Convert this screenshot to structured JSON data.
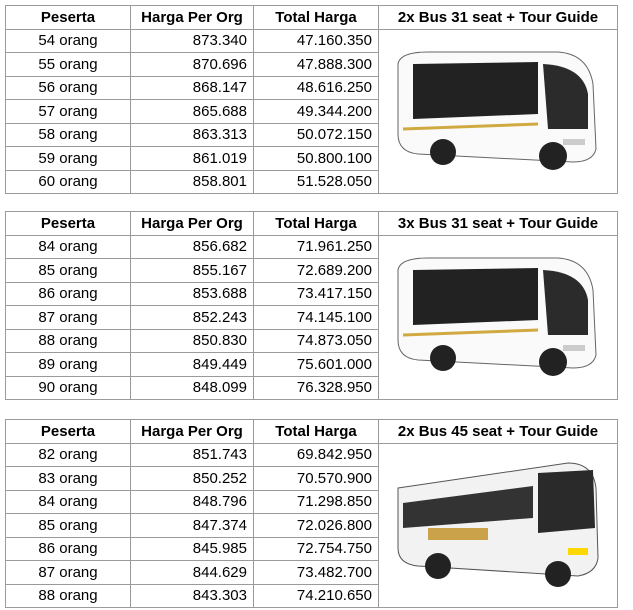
{
  "headers": {
    "peserta": "Peserta",
    "harga": "Harga Per Org",
    "total": "Total Harga"
  },
  "packages": [
    {
      "title": "2x Bus 31 seat + Tour Guide",
      "bus_icon": "medium-bus-image",
      "rows": [
        {
          "peserta": "54 orang",
          "harga": "873.340",
          "total": "47.160.350"
        },
        {
          "peserta": "55 orang",
          "harga": "870.696",
          "total": "47.888.300"
        },
        {
          "peserta": "56 orang",
          "harga": "868.147",
          "total": "48.616.250"
        },
        {
          "peserta": "57 orang",
          "harga": "865.688",
          "total": "49.344.200"
        },
        {
          "peserta": "58 orang",
          "harga": "863.313",
          "total": "50.072.150"
        },
        {
          "peserta": "59 orang",
          "harga": "861.019",
          "total": "50.800.100"
        },
        {
          "peserta": "60 orang",
          "harga": "858.801",
          "total": "51.528.050"
        }
      ]
    },
    {
      "title": "3x Bus 31 seat + Tour Guide",
      "bus_icon": "medium-bus-image",
      "rows": [
        {
          "peserta": "84 orang",
          "harga": "856.682",
          "total": "71.961.250"
        },
        {
          "peserta": "85 orang",
          "harga": "855.167",
          "total": "72.689.200"
        },
        {
          "peserta": "86 orang",
          "harga": "853.688",
          "total": "73.417.150"
        },
        {
          "peserta": "87 orang",
          "harga": "852.243",
          "total": "74.145.100"
        },
        {
          "peserta": "88 orang",
          "harga": "850.830",
          "total": "74.873.050"
        },
        {
          "peserta": "89 orang",
          "harga": "849.449",
          "total": "75.601.000"
        },
        {
          "peserta": "90 orang",
          "harga": "848.099",
          "total": "76.328.950"
        }
      ]
    },
    {
      "title": "2x Bus 45 seat + Tour Guide",
      "bus_icon": "big-bus-image",
      "rows": [
        {
          "peserta": "82 orang",
          "harga": "851.743",
          "total": "69.842.950"
        },
        {
          "peserta": "83 orang",
          "harga": "850.252",
          "total": "70.570.900"
        },
        {
          "peserta": "84 orang",
          "harga": "848.796",
          "total": "71.298.850"
        },
        {
          "peserta": "85 orang",
          "harga": "847.374",
          "total": "72.026.800"
        },
        {
          "peserta": "86 orang",
          "harga": "845.985",
          "total": "72.754.750"
        },
        {
          "peserta": "87 orang",
          "harga": "844.629",
          "total": "73.482.700"
        },
        {
          "peserta": "88 orang",
          "harga": "843.303",
          "total": "74.210.650"
        }
      ]
    }
  ]
}
